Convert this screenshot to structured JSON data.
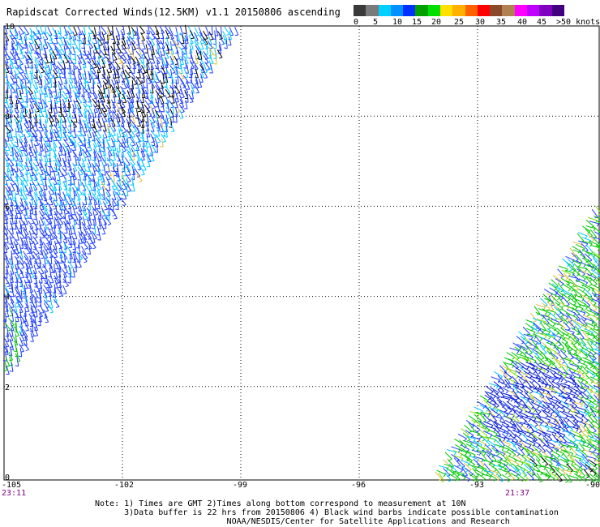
{
  "title": "Rapidscat Corrected Winds(12.5KM) v1.1 20150806 ascending",
  "colorbar": {
    "colors": [
      "#3a3a3a",
      "#7a7a7a",
      "#00d0ff",
      "#0090ff",
      "#0030ff",
      "#00a000",
      "#00e000",
      "#ffe000",
      "#ffb000",
      "#ff6000",
      "#ff0000",
      "#8a4a2a",
      "#b08050",
      "#ff00ff",
      "#c000ff",
      "#8000c0",
      "#400080"
    ],
    "labels": [
      "0",
      "5",
      "10",
      "15",
      "20",
      "25",
      "30",
      "35",
      "40",
      "45",
      ">50 knots"
    ]
  },
  "axes": {
    "x_ticks": [
      "-105",
      "-102",
      "-99",
      "-96",
      "-93",
      "-90"
    ],
    "y_ticks": [
      "10",
      "8",
      "6",
      "4",
      "2",
      "0"
    ],
    "x_range": [
      -105,
      -90
    ],
    "y_range": [
      0,
      10
    ]
  },
  "times": [
    "23:11",
    "21:37"
  ],
  "note": [
    "Note: 1) Times are GMT 2)Times along bottom correspond to measurement at 10N",
    "      3)Data buffer is 22 hrs from 20150806 4) Black wind barbs indicate possible contamination",
    "                           NOAA/NESDIS/Center for Satellite Applications and Research"
  ],
  "swaths": [
    {
      "name": "west-swath",
      "lon": [
        -105,
        -99.3
      ],
      "lat": [
        2.3,
        10
      ],
      "dominant_speed": "10-15 knots",
      "time": "23:11"
    },
    {
      "name": "east-swath",
      "lon": [
        -92,
        -90
      ],
      "lat": [
        0,
        6.2
      ],
      "dominant_speed": "15-20 knots",
      "time": "21:37"
    }
  ]
}
